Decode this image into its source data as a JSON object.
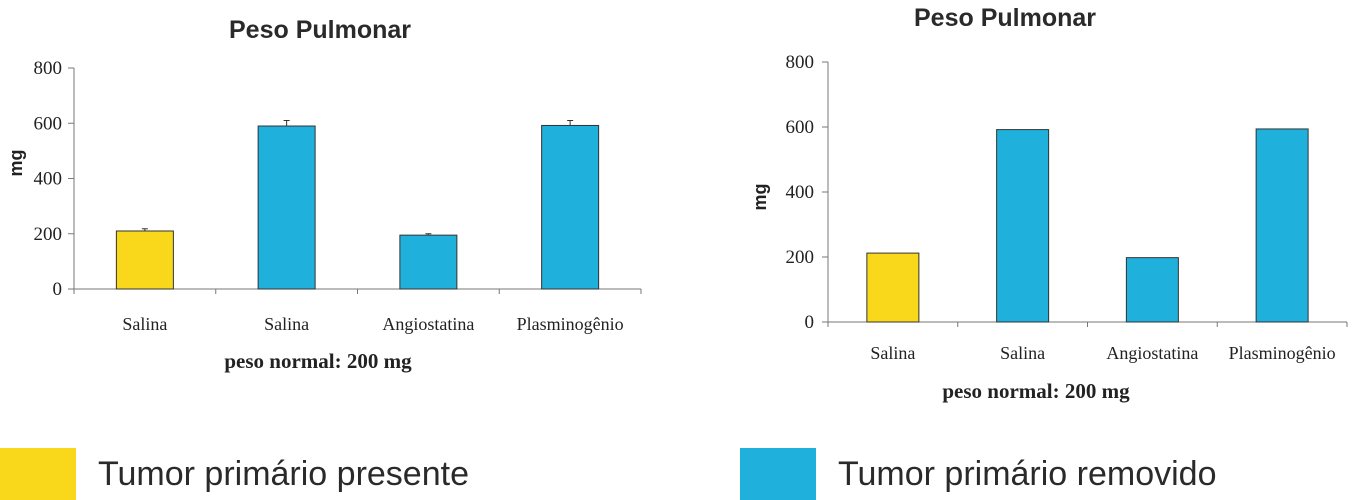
{
  "colors": {
    "present": "#f9d81b",
    "removed": "#1fb1dc"
  },
  "chart_data": [
    {
      "type": "bar",
      "title": "Peso Pulmonar",
      "xlabel": "peso normal: 200 mg",
      "ylabel": "mg",
      "ylim": [
        0,
        800
      ],
      "yticks": [
        "0",
        "200",
        "400",
        "600",
        "800"
      ],
      "categories": [
        "Salina",
        "Salina",
        "Angiostatina",
        "Plasminogênio"
      ],
      "values": [
        210,
        590,
        195,
        592
      ],
      "errors": [
        8,
        20,
        5,
        18
      ],
      "bar_groups": [
        "present",
        "removed",
        "removed",
        "removed"
      ],
      "grid": false
    },
    {
      "type": "bar",
      "title": "Peso Pulmonar",
      "xlabel": "peso normal: 200 mg",
      "ylabel": "mg",
      "ylim": [
        0,
        800
      ],
      "yticks": [
        "0",
        "200",
        "400",
        "600",
        "800"
      ],
      "categories": [
        "Salina",
        "Salina",
        "Angiostatina",
        "Plasminogênio"
      ],
      "values": [
        212,
        592,
        198,
        594
      ],
      "bar_groups": [
        "present",
        "removed",
        "removed",
        "removed"
      ],
      "grid": false
    }
  ],
  "legend": [
    {
      "key": "present",
      "label": "Tumor primário presente"
    },
    {
      "key": "removed",
      "label": "Tumor primário removido"
    }
  ]
}
